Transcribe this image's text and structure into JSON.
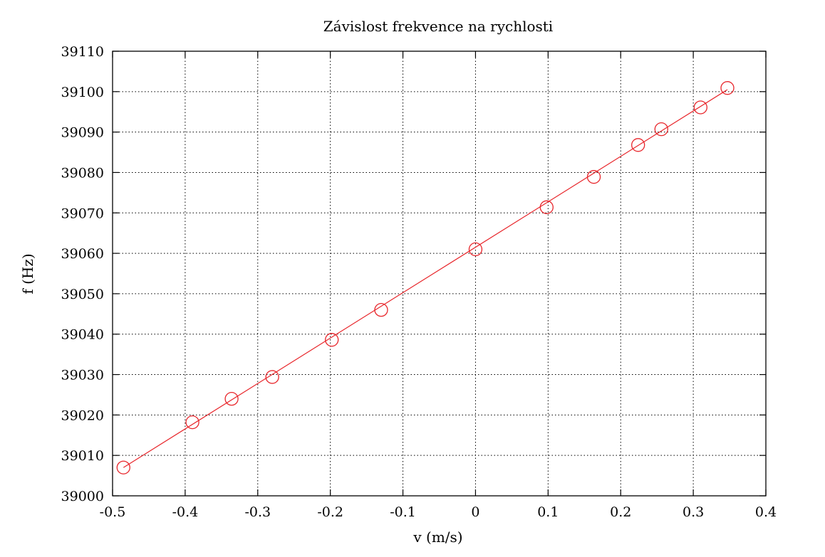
{
  "chart_data": {
    "type": "scatter",
    "title": "Závislost frekvence na rychlosti",
    "xlabel": "v (m/s)",
    "ylabel": "f (Hz)",
    "xlim": [
      -0.5,
      0.4
    ],
    "ylim": [
      39000,
      39110
    ],
    "grid": true,
    "x_ticks": [
      "-0.5",
      "-0.4",
      "-0.3",
      "-0.2",
      "-0.1",
      "0",
      "0.1",
      "0.2",
      "0.3",
      "0.4"
    ],
    "y_ticks": [
      "39000",
      "39010",
      "39020",
      "39030",
      "39040",
      "39050",
      "39060",
      "39070",
      "39080",
      "39090",
      "39100",
      "39110"
    ],
    "series": [
      {
        "kind": "points",
        "marker": "circle",
        "color": "#e8262b",
        "x": [
          -0.485,
          -0.39,
          -0.336,
          -0.28,
          -0.198,
          -0.13,
          0.0,
          0.098,
          0.163,
          0.224,
          0.256,
          0.31,
          0.347
        ],
        "y": [
          39007,
          39018.2,
          39024,
          39029.4,
          39038.6,
          39046,
          39061,
          39071.4,
          39078.9,
          39086.8,
          39090.7,
          39096.1,
          39100.9
        ]
      },
      {
        "kind": "fit_line",
        "color": "#e8262b",
        "x": [
          -0.485,
          0.347
        ],
        "y": [
          39007,
          39100.5
        ]
      }
    ]
  }
}
